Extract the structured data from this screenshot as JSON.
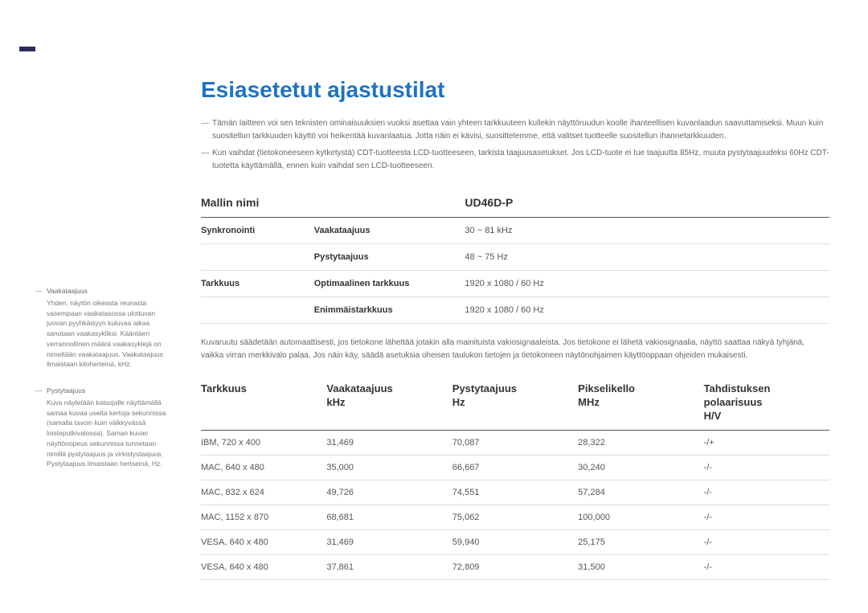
{
  "heading": "Esiasetetut ajastustilat",
  "intro": [
    "Tämän laitteen voi sen teknisten ominaisuuksien vuoksi asettaa vain yhteen tarkkuuteen kullekin näyttöruudun koolle ihanteellisen kuvanlaadun saavuttamiseksi. Muun kuin suositellun tarkkuuden käyttö voi heikentää kuvanlaatua. Jotta näin ei kävisi, suosittelemme, että valitset tuotteelle suositellun ihannetarkkuuden.",
    "Kun vaihdat (tietokoneeseen kytketystä) CDT-tuotteesta LCD-tuotteeseen, tarkista taajuusasetukset. Jos LCD-tuote ei tue taajuutta 85Hz, muuta pystytaajuudeksi 60Hz CDT-tuotetta käyttämällä, ennen kuin vaihdat sen LCD-tuotteeseen."
  ],
  "spec_table": {
    "headers": [
      "Mallin nimi",
      "",
      "UD46D-P"
    ],
    "rows": [
      [
        "Synkronointi",
        "Vaakataajuus",
        "30 ~ 81 kHz"
      ],
      [
        "",
        "Pystytaajuus",
        "48 ~ 75 Hz"
      ],
      [
        "Tarkkuus",
        "Optimaalinen tarkkuus",
        "1920 x 1080 / 60 Hz"
      ],
      [
        "",
        "Enimmäistarkkuus",
        "1920 x 1080 / 60 Hz"
      ]
    ]
  },
  "mid_text": "Kuvaruutu säädetään automaattisesti, jos tietokone lähettää jotakin alla mainituista vakiosignaaleista. Jos tietokone ei lähetä vakiosignaalia, näyttö saattaa näkyä tyhjänä, vaikka virran merkkivalo palaa. Jos näin käy, säädä asetuksia oheisen taulukon tietojen ja tietokoneen näytönohjaimen käyttöoppaan ohjeiden mukaisesti.",
  "modes_table": {
    "headers": [
      "Tarkkuus",
      "Vaakataajuus\nkHz",
      "Pystytaajuus\nHz",
      "Pikselikello\nMHz",
      "Tahdistuksen\npolaarisuus\nH/V"
    ],
    "rows": [
      [
        "IBM, 720 x 400",
        "31,469",
        "70,087",
        "28,322",
        "-/+"
      ],
      [
        "MAC, 640 x 480",
        "35,000",
        "66,667",
        "30,240",
        "-/-"
      ],
      [
        "MAC, 832 x 624",
        "49,726",
        "74,551",
        "57,284",
        "-/-"
      ],
      [
        "MAC, 1152 x 870",
        "68,681",
        "75,062",
        "100,000",
        "-/-"
      ],
      [
        "VESA, 640 x 480",
        "31,469",
        "59,940",
        "25,175",
        "-/-"
      ],
      [
        "VESA, 640 x 480",
        "37,861",
        "72,809",
        "31,500",
        "-/-"
      ]
    ]
  },
  "sidebar": [
    {
      "title": "Vaakataajuus",
      "body": "Yhden, näytön oikeasta reunasta vasempaan vaakatasossa ulottuvan juovan pyyhkäisyyn kuluvaa aikaa sanotaan vaakasykliksi. Kääntäen verrannollinen määrä vaakasyklejä on nimeltään vaakataajuus. Vaakataajuus ilmaistaan kiloherteinä, kHz."
    },
    {
      "title": "Pystytaajuus",
      "body": "Kuva näytetään katsojalle näyttämällä samaa kuvaa useita kertoja sekunnissa (samalla tavoin kuin välkkyvässä loisteputkivalossa). Saman kuvan näyttönopeus sekunnissa tunnetaan nimillä pystytaajuus ja virkistystaajuus. Pystytaajuus ilmaistaan hertseinä, Hz."
    }
  ],
  "colors": {
    "heading": "#1e73c6",
    "text_body": "#666666",
    "text_dark": "#333333",
    "border_thick": "#555555",
    "border_thin": "#dddddd",
    "topbar": "#2b2b5c",
    "background": "#ffffff"
  }
}
